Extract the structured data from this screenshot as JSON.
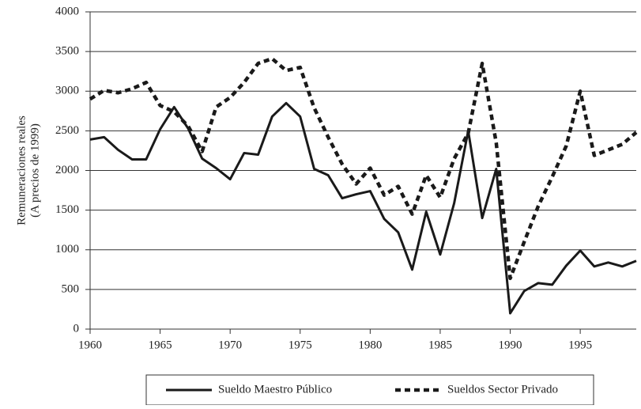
{
  "chart_data": {
    "type": "line",
    "ylabel": [
      "Remuneraciones reales",
      "(A precios de 1999)"
    ],
    "x": [
      1960,
      1961,
      1962,
      1963,
      1964,
      1965,
      1966,
      1967,
      1968,
      1969,
      1970,
      1971,
      1972,
      1973,
      1974,
      1975,
      1976,
      1977,
      1978,
      1979,
      1980,
      1981,
      1982,
      1983,
      1984,
      1985,
      1986,
      1987,
      1988,
      1989,
      1990,
      1991,
      1992,
      1993,
      1994,
      1995,
      1996,
      1997,
      1998,
      1999
    ],
    "series": [
      {
        "name": "Sueldo Maestro Público",
        "color": "#1a1a1a",
        "style": "solid",
        "values": [
          2390,
          2420,
          2260,
          2140,
          2140,
          2520,
          2800,
          2530,
          2150,
          2030,
          1890,
          2220,
          2200,
          2680,
          2850,
          2680,
          2020,
          1940,
          1650,
          1700,
          1740,
          1390,
          1220,
          750,
          1480,
          940,
          1590,
          2500,
          1400,
          2020,
          200,
          480,
          580,
          560,
          800,
          990,
          790,
          840,
          790,
          860
        ]
      },
      {
        "name": "Sueldos Sector Privado",
        "color": "#1a1a1a",
        "style": "dashed",
        "values": [
          2900,
          3010,
          2980,
          3030,
          3110,
          2820,
          2740,
          2560,
          2240,
          2800,
          2920,
          3110,
          3350,
          3410,
          3260,
          3300,
          2790,
          2420,
          2080,
          1830,
          2030,
          1690,
          1800,
          1450,
          1940,
          1660,
          2150,
          2470,
          3350,
          2350,
          640,
          1100,
          1550,
          1920,
          2310,
          3000,
          2190,
          2260,
          2330,
          2480
        ]
      }
    ],
    "xlim": [
      1960,
      1999
    ],
    "xticks": [
      1960,
      1965,
      1970,
      1975,
      1980,
      1985,
      1990,
      1995
    ],
    "ylim": [
      0,
      4000
    ],
    "yticks": [
      0,
      500,
      1000,
      1500,
      2000,
      2500,
      3000,
      3500,
      4000
    ],
    "grid": true,
    "legend": "bottom"
  }
}
